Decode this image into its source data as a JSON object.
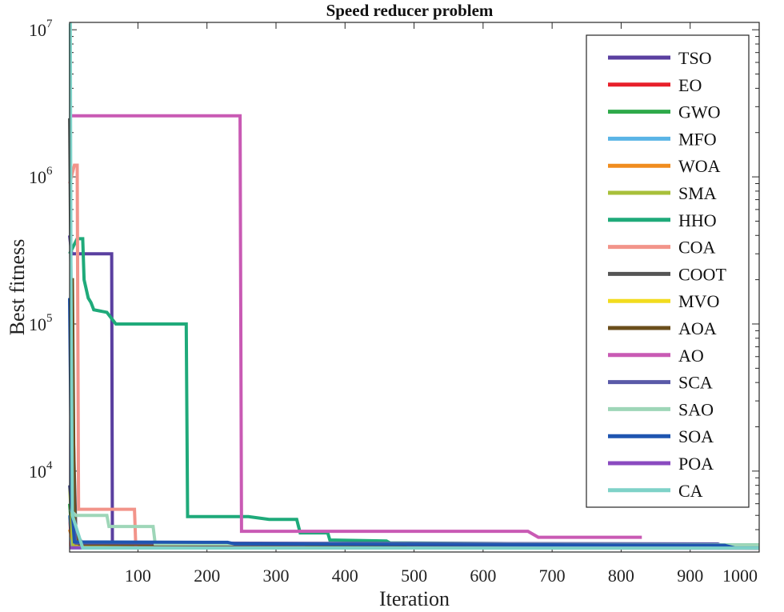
{
  "chart_data": {
    "type": "line",
    "title": "Speed reducer problem",
    "xlabel": "Iteration",
    "ylabel": "Best fitness",
    "xlim": [
      1,
      1000
    ],
    "ylim_log10": [
      3.45,
      7.05
    ],
    "y_scale": "log",
    "x_ticks": [
      100,
      200,
      300,
      400,
      500,
      600,
      700,
      800,
      900,
      1000
    ],
    "x_tick_labels": [
      "100",
      "200",
      "300",
      "400",
      "500",
      "600",
      "700",
      "800",
      "900",
      "1000"
    ],
    "y_ticks": [
      {
        "exp": 4,
        "base": "10",
        "power": "4"
      },
      {
        "exp": 5,
        "base": "10",
        "power": "5"
      },
      {
        "exp": 6,
        "base": "10",
        "power": "6"
      },
      {
        "exp": 7,
        "base": "10",
        "power": "7"
      }
    ],
    "legend_position": "top-right",
    "series": [
      {
        "name": "TSO",
        "color": "#5a3fa0",
        "points": [
          [
            1,
            400000
          ],
          [
            4,
            300000
          ],
          [
            62,
            300000
          ],
          [
            63,
            3050
          ],
          [
            1000,
            3000
          ]
        ]
      },
      {
        "name": "EO",
        "color": "#e8202a",
        "points": [
          [
            1,
            5000
          ],
          [
            4,
            3030
          ],
          [
            1000,
            2996
          ]
        ]
      },
      {
        "name": "GWO",
        "color": "#2eaa4a",
        "points": [
          [
            1,
            6000
          ],
          [
            6,
            3100
          ],
          [
            1000,
            3003
          ]
        ]
      },
      {
        "name": "MFO",
        "color": "#5ab4e6",
        "points": [
          [
            1,
            5000
          ],
          [
            5,
            3010
          ],
          [
            1000,
            2995
          ]
        ]
      },
      {
        "name": "WOA",
        "color": "#f08c1e",
        "points": [
          [
            1,
            4000
          ],
          [
            8,
            3080
          ],
          [
            1000,
            3030
          ]
        ]
      },
      {
        "name": "SMA",
        "color": "#a8c03a",
        "points": [
          [
            1,
            8000
          ],
          [
            6,
            3050
          ],
          [
            1000,
            2996
          ]
        ]
      },
      {
        "name": "HHO",
        "color": "#1faa7a",
        "points": [
          [
            1,
            300000
          ],
          [
            12,
            380000
          ],
          [
            20,
            380000
          ],
          [
            22,
            200000
          ],
          [
            28,
            150000
          ],
          [
            32,
            140000
          ],
          [
            36,
            125000
          ],
          [
            55,
            120000
          ],
          [
            68,
            100000
          ],
          [
            170,
            100000
          ],
          [
            172,
            4900
          ],
          [
            260,
            4900
          ],
          [
            290,
            4700
          ],
          [
            330,
            4700
          ],
          [
            335,
            3800
          ],
          [
            375,
            3800
          ],
          [
            378,
            3400
          ],
          [
            460,
            3350
          ],
          [
            465,
            3250
          ],
          [
            700,
            3200
          ],
          [
            760,
            3150
          ],
          [
            1000,
            3150
          ]
        ]
      },
      {
        "name": "COA",
        "color": "#f2948a",
        "points": [
          [
            1,
            900000
          ],
          [
            8,
            1200000
          ],
          [
            12,
            1200000
          ],
          [
            14,
            5500
          ],
          [
            95,
            5500
          ],
          [
            97,
            3000
          ],
          [
            1000,
            2996
          ]
        ]
      },
      {
        "name": "COOT",
        "color": "#555555",
        "points": [
          [
            1,
            2500000
          ],
          [
            4,
            50000
          ],
          [
            10,
            3800
          ],
          [
            20,
            3200
          ],
          [
            1000,
            2996
          ]
        ]
      },
      {
        "name": "MVO",
        "color": "#f2dc1e",
        "points": [
          [
            1,
            60000
          ],
          [
            5,
            60000
          ],
          [
            8,
            3300
          ],
          [
            1000,
            3010
          ]
        ]
      },
      {
        "name": "AOA",
        "color": "#6b4e1c",
        "points": [
          [
            1,
            200000
          ],
          [
            5,
            200000
          ],
          [
            8,
            3900
          ],
          [
            15,
            3200
          ],
          [
            1000,
            3050
          ]
        ]
      },
      {
        "name": "AO",
        "color": "#c95ab4",
        "points": [
          [
            1,
            2600000
          ],
          [
            248,
            2600000
          ],
          [
            250,
            3900
          ],
          [
            665,
            3900
          ],
          [
            680,
            3550
          ],
          [
            830,
            3550
          ]
        ]
      },
      {
        "name": "SCA",
        "color": "#5a5aa8",
        "points": [
          [
            1,
            8000
          ],
          [
            10,
            3250
          ],
          [
            940,
            3200
          ],
          [
            950,
            3050
          ],
          [
            1000,
            3050
          ]
        ]
      },
      {
        "name": "SAO",
        "color": "#9ed6b8",
        "points": [
          [
            1,
            5500
          ],
          [
            10,
            5000
          ],
          [
            55,
            5000
          ],
          [
            58,
            4200
          ],
          [
            122,
            4200
          ],
          [
            125,
            3200
          ],
          [
            1000,
            3150
          ]
        ]
      },
      {
        "name": "SOA",
        "color": "#1f55b0",
        "points": [
          [
            1,
            150000
          ],
          [
            4,
            6000
          ],
          [
            8,
            3300
          ],
          [
            230,
            3280
          ],
          [
            240,
            3200
          ],
          [
            950,
            3130
          ],
          [
            965,
            3000
          ],
          [
            1000,
            3000
          ]
        ]
      },
      {
        "name": "POA",
        "color": "#8a4ac0",
        "points": [
          [
            1,
            3010
          ],
          [
            1000,
            2996
          ]
        ]
      },
      {
        "name": "CA",
        "color": "#7ed2c8",
        "points": [
          [
            1,
            11000000
          ],
          [
            2,
            11000000
          ],
          [
            3,
            200000
          ],
          [
            5,
            5000
          ],
          [
            20,
            3000
          ],
          [
            1000,
            2996
          ]
        ]
      }
    ]
  }
}
